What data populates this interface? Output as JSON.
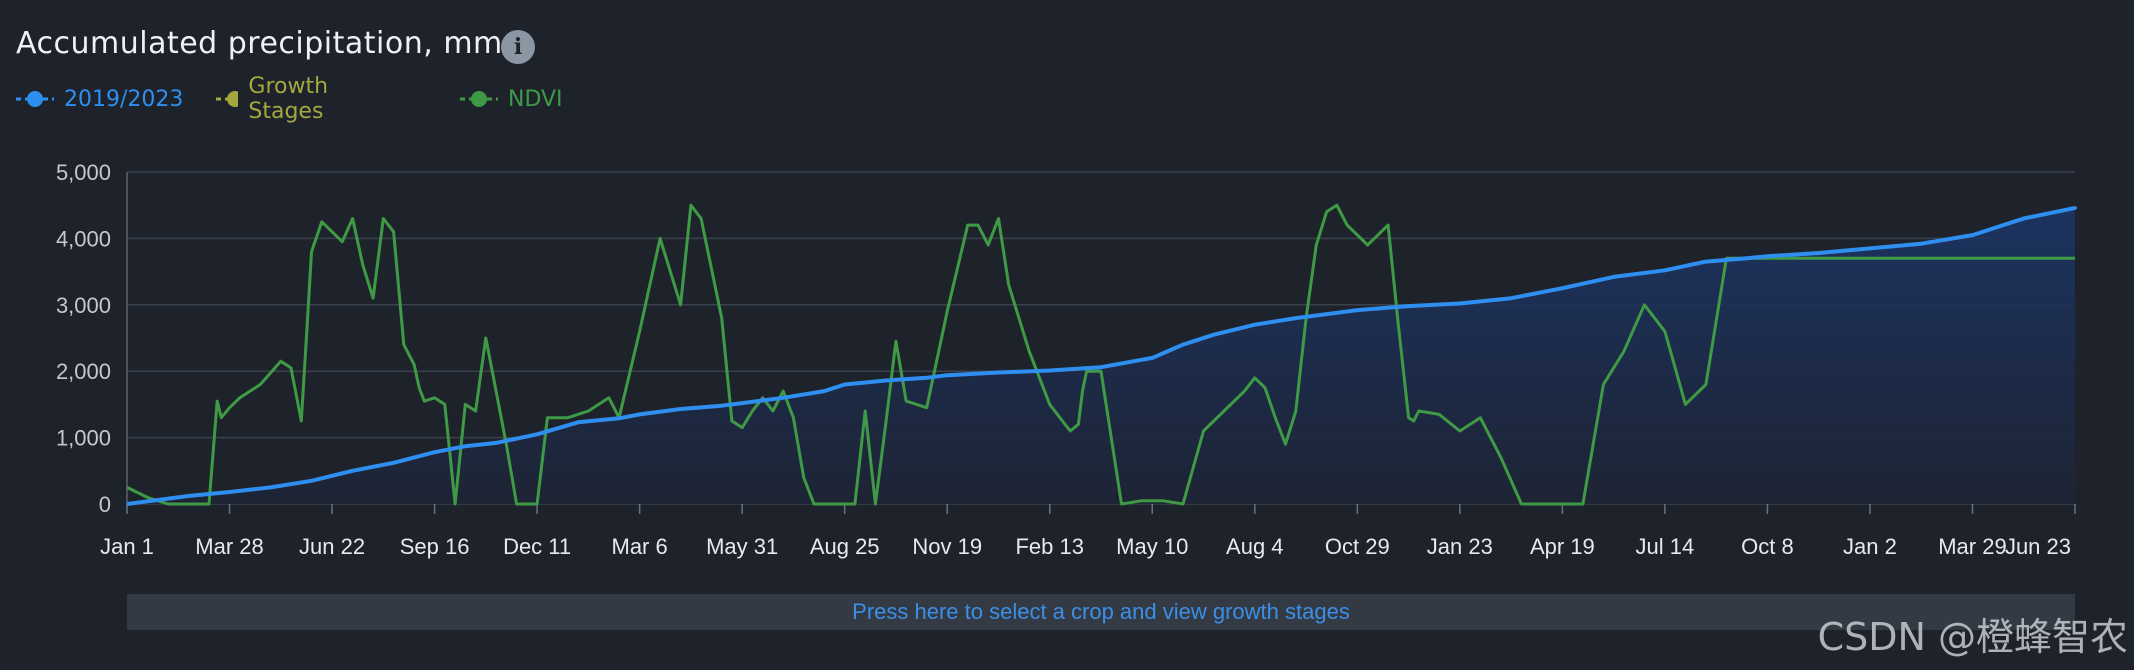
{
  "header": {
    "title": "Accumulated precipitation, mm",
    "info_icon": "info-icon",
    "info_glyph": "i"
  },
  "legend": [
    {
      "label": "2019/2023",
      "color": "#2e8ff0"
    },
    {
      "label": "Growth Stages",
      "color": "#a5a83e"
    },
    {
      "label": "NDVI",
      "color": "#3f9a45"
    }
  ],
  "crop_bar": {
    "label": "Press here to select a crop and view growth stages"
  },
  "watermark": {
    "text": "CSDN @橙蜂智农"
  },
  "chart_data": {
    "type": "line",
    "ylim": [
      0,
      5000
    ],
    "yticks": [
      0,
      1000,
      2000,
      3000,
      4000,
      5000
    ],
    "ytick_labels": [
      "0",
      "1,000",
      "2,000",
      "3,000",
      "4,000",
      "5,000"
    ],
    "xticks": [
      "Jan 1",
      "Mar 28",
      "Jun 22",
      "Sep 16",
      "Dec 11",
      "Mar 6",
      "May 31",
      "Aug 25",
      "Nov 19",
      "Feb 13",
      "May 10",
      "Aug 4",
      "Oct 29",
      "Jan 23",
      "Apr 19",
      "Jul 14",
      "Oct 8",
      "Jan 2",
      "Mar 29",
      "Jun 23"
    ],
    "grid": true,
    "colors": {
      "precip": "#2e8ff0",
      "ndvi": "#3f9a45",
      "area_top": "#1c3566",
      "area_bottom": "#1d2435"
    },
    "series": [
      {
        "name": "2019/2023",
        "x": [
          0,
          0.3,
          0.6,
          1,
          1.4,
          1.8,
          2.2,
          2.6,
          3,
          3.3,
          3.6,
          4,
          4.4,
          4.8,
          5,
          5.4,
          5.8,
          6,
          6.4,
          6.8,
          7,
          7.4,
          7.8,
          8,
          8.5,
          9,
          9.5,
          10,
          10.3,
          10.6,
          11,
          11.4,
          11.8,
          12,
          12.5,
          13,
          13.5,
          14,
          14.5,
          15,
          15.4,
          15.8,
          16,
          16.5,
          17,
          17.5,
          18,
          18.5,
          19,
          19
        ],
        "y": [
          0,
          60,
          120,
          180,
          250,
          350,
          500,
          620,
          780,
          870,
          920,
          1050,
          1230,
          1290,
          1350,
          1430,
          1480,
          1520,
          1600,
          1700,
          1800,
          1860,
          1900,
          1940,
          1980,
          2010,
          2060,
          2200,
          2400,
          2550,
          2700,
          2800,
          2880,
          2920,
          2980,
          3020,
          3100,
          3250,
          3420,
          3520,
          3650,
          3700,
          3730,
          3780,
          3850,
          3920,
          4050,
          4300,
          4460,
          4480
        ]
      },
      {
        "name": "NDVI",
        "x": [
          0,
          0.2,
          0.4,
          0.6,
          0.8,
          0.88,
          0.92,
          1,
          1.1,
          1.3,
          1.5,
          1.6,
          1.7,
          1.75,
          1.8,
          1.9,
          2.1,
          2.2,
          2.3,
          2.4,
          2.5,
          2.6,
          2.7,
          2.8,
          2.85,
          2.9,
          3.0,
          3.1,
          3.2,
          3.3,
          3.4,
          3.5,
          3.6,
          3.7,
          3.8,
          3.85,
          3.9,
          4.0,
          4.1,
          4.3,
          4.5,
          4.7,
          4.8,
          5.0,
          5.2,
          5.4,
          5.5,
          5.6,
          5.8,
          5.9,
          6.0,
          6.1,
          6.2,
          6.3,
          6.4,
          6.5,
          6.6,
          6.7,
          6.8,
          6.9,
          7.0,
          7.1,
          7.2,
          7.3,
          7.4,
          7.5,
          7.6,
          7.8,
          8.0,
          8.2,
          8.3,
          8.4,
          8.5,
          8.6,
          8.8,
          9.0,
          9.2,
          9.28,
          9.32,
          9.36,
          9.5,
          9.7,
          9.9,
          10.0,
          10.1,
          10.3,
          10.5,
          10.7,
          10.9,
          11.0,
          11.1,
          11.2,
          11.3,
          11.4,
          11.5,
          11.6,
          11.7,
          11.8,
          11.9,
          12.1,
          12.3,
          12.4,
          12.5,
          12.55,
          12.6,
          12.8,
          13.0,
          13.2,
          13.4,
          13.6,
          13.8,
          14.0,
          14.2,
          14.4,
          14.6,
          14.8,
          15.0,
          15.2,
          15.4,
          15.6,
          15.7,
          15.8,
          15.9,
          16.0,
          16.1,
          16.2,
          16.3,
          16.4,
          16.6,
          16.8,
          17.0,
          17.2,
          17.4,
          17.6,
          17.8,
          18.0,
          18.1,
          18.2,
          18.4,
          18.6,
          18.8,
          19.0
        ],
        "y": [
          250,
          100,
          0,
          0,
          0,
          1550,
          1300,
          1450,
          1600,
          1800,
          2150,
          2050,
          1250,
          2500,
          3800,
          4250,
          3950,
          4300,
          3600,
          3100,
          4300,
          4100,
          2400,
          2100,
          1750,
          1550,
          1600,
          1500,
          0,
          1500,
          1400,
          2500,
          1700,
          900,
          0,
          0,
          0,
          0,
          1300,
          1300,
          1400,
          1600,
          1300,
          2600,
          4000,
          3000,
          4500,
          4300,
          2800,
          1250,
          1150,
          1400,
          1600,
          1400,
          1700,
          1300,
          400,
          0,
          0,
          0,
          0,
          0,
          1400,
          0,
          1200,
          2450,
          1550,
          1450,
          2900,
          4200,
          4200,
          3900,
          4300,
          3300,
          2300,
          1500,
          1100,
          1200,
          1700,
          2000,
          2000,
          0,
          50,
          50,
          50,
          0,
          1100,
          1400,
          1700,
          1900,
          1750,
          1300,
          900,
          1400,
          2800,
          3900,
          4400,
          4500,
          4200,
          3900,
          4200,
          2700,
          1300,
          1250,
          1400,
          1350,
          1100,
          1300,
          700,
          0,
          0,
          0,
          0,
          1800,
          2300,
          3000,
          2600,
          1500,
          1800,
          3700,
          3700,
          3700,
          3700,
          3700,
          3700,
          3700,
          3700,
          3700,
          3700,
          3700,
          3700,
          3700,
          3700,
          3700,
          3700,
          3700,
          3700,
          3700,
          3700,
          3700,
          3700,
          3700
        ]
      }
    ]
  }
}
